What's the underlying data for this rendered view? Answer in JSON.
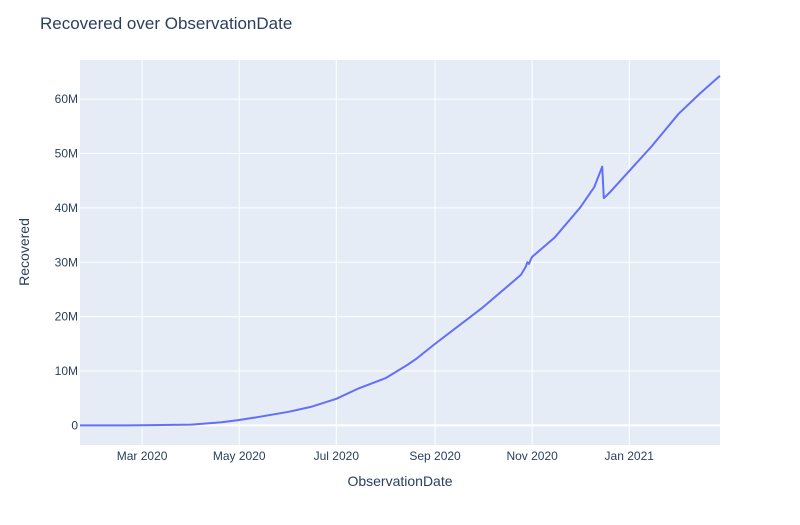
{
  "chart_data": {
    "type": "line",
    "title": "Recovered over ObservationDate",
    "xlabel": "ObservationDate",
    "ylabel": "Recovered",
    "grid": true,
    "legend": "none",
    "line_color": "#636efa",
    "plot_bg": "#e5ecf6",
    "x_range": [
      "2020-01-22",
      "2021-02-27"
    ],
    "y_range": [
      -3600000,
      67200000
    ],
    "x_ticks": [
      {
        "date": "2020-03-01",
        "label": "Mar 2020"
      },
      {
        "date": "2020-05-01",
        "label": "May 2020"
      },
      {
        "date": "2020-07-01",
        "label": "Jul 2020"
      },
      {
        "date": "2020-09-01",
        "label": "Sep 2020"
      },
      {
        "date": "2020-11-01",
        "label": "Nov 2020"
      },
      {
        "date": "2021-01-01",
        "label": "Jan 2021"
      }
    ],
    "y_ticks": [
      {
        "value": 0,
        "label": "0"
      },
      {
        "value": 10000000,
        "label": "10M"
      },
      {
        "value": 20000000,
        "label": "20M"
      },
      {
        "value": 30000000,
        "label": "30M"
      },
      {
        "value": 40000000,
        "label": "40M"
      },
      {
        "value": 50000000,
        "label": "50M"
      },
      {
        "value": 60000000,
        "label": "60M"
      }
    ],
    "series": [
      {
        "points": [
          [
            "2020-01-22",
            30
          ],
          [
            "2020-02-15",
            10000
          ],
          [
            "2020-03-01",
            45000
          ],
          [
            "2020-04-01",
            150000
          ],
          [
            "2020-04-20",
            600000
          ],
          [
            "2020-05-01",
            1000000
          ],
          [
            "2020-05-10",
            1400000
          ],
          [
            "2020-06-01",
            2500000
          ],
          [
            "2020-06-15",
            3400000
          ],
          [
            "2020-07-01",
            4900000
          ],
          [
            "2020-07-15",
            6800000
          ],
          [
            "2020-08-01",
            8700000
          ],
          [
            "2020-08-15",
            11200000
          ],
          [
            "2020-08-20",
            12200000
          ],
          [
            "2020-09-01",
            15000000
          ],
          [
            "2020-10-01",
            21700000
          ],
          [
            "2020-10-15",
            25200000
          ],
          [
            "2020-10-25",
            27700000
          ],
          [
            "2020-10-28",
            29200000
          ],
          [
            "2020-10-29",
            30000000
          ],
          [
            "2020-10-30",
            29700000
          ],
          [
            "2020-10-31",
            30400000
          ],
          [
            "2020-11-01",
            31000000
          ],
          [
            "2020-11-15",
            34500000
          ],
          [
            "2020-12-01",
            40000000
          ],
          [
            "2020-12-10",
            43800000
          ],
          [
            "2020-12-14",
            46800000
          ],
          [
            "2020-12-15",
            47600000
          ],
          [
            "2020-12-16",
            41800000
          ],
          [
            "2020-12-20",
            42900000
          ],
          [
            "2021-01-01",
            46800000
          ],
          [
            "2021-01-15",
            51300000
          ],
          [
            "2021-02-01",
            57300000
          ],
          [
            "2021-02-15",
            61200000
          ],
          [
            "2021-02-27",
            64300000
          ]
        ]
      }
    ]
  }
}
